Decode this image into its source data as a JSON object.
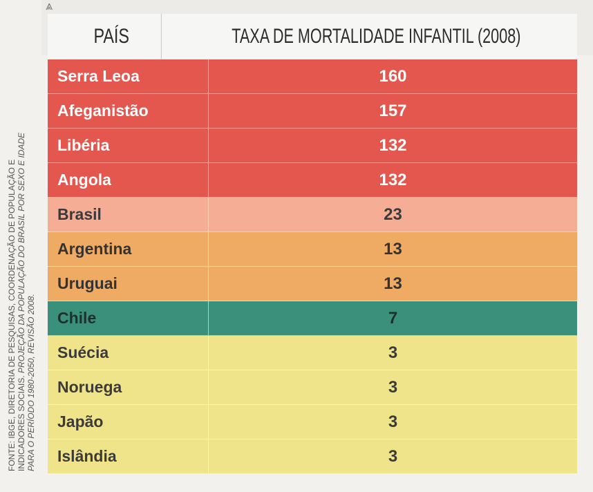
{
  "headers": {
    "country": "PAÍS",
    "value": "TAXA DE MORTALIDADE INFANTIL (2008)"
  },
  "rows": [
    {
      "country": "Serra Leoa",
      "value": "160",
      "color": "#e4574f"
    },
    {
      "country": "Afeganistão",
      "value": "157",
      "color": "#e4574f"
    },
    {
      "country": "Libéria",
      "value": "132",
      "color": "#e4574f"
    },
    {
      "country": "Angola",
      "value": "132",
      "color": "#e4574f"
    },
    {
      "country": "Brasil",
      "value": "23",
      "color": "#f5ad95"
    },
    {
      "country": "Argentina",
      "value": "13",
      "color": "#efaa63"
    },
    {
      "country": "Uruguai",
      "value": "13",
      "color": "#efaa63"
    },
    {
      "country": "Chile",
      "value": "7",
      "color": "#3b907c"
    },
    {
      "country": "Suécia",
      "value": "3",
      "color": "#efe48a"
    },
    {
      "country": "Noruega",
      "value": "3",
      "color": "#efe48a"
    },
    {
      "country": "Japão",
      "value": "3",
      "color": "#efe48a"
    },
    {
      "country": "Islândia",
      "value": "3",
      "color": "#efe48a"
    }
  ],
  "source": {
    "line1": "FONTE: IBGE, DIRETORIA DE PESQUISAS, COORDENAÇÃO DE POPULAÇÃO E",
    "line2_regular": "INDICADORES SOCIAIS. ",
    "line2_italic": "PROJEÇÃO DA POPULAÇÃO DO BRASIL POR SEXO E IDADE",
    "line3_italic": "PARA O PERÍODO 1980-2050, REVISÃO 2008."
  },
  "icons": {
    "corner": "double-chevron-up-icon"
  }
}
